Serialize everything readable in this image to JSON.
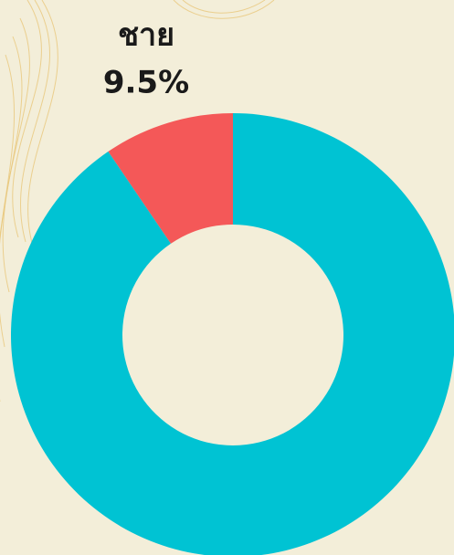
{
  "chart_data": {
    "type": "donut",
    "categories": [
      "ชาย",
      null
    ],
    "values": [
      9.5,
      90.5
    ],
    "value_labels": [
      "9.5%",
      null
    ],
    "colors": [
      "#f45858",
      "#00c3d3"
    ],
    "direction": "counterclockwise"
  }
}
